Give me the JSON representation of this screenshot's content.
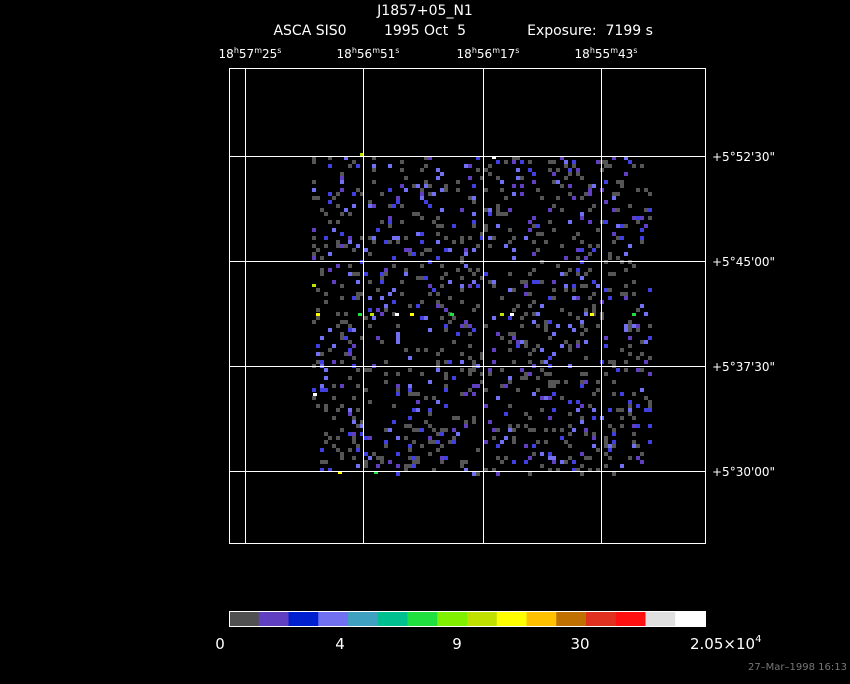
{
  "header": {
    "title": "J1857+05_N1",
    "subtitle": [
      "ASCA SIS0",
      "1995 Oct  5",
      "Exposure:  7199 s"
    ]
  },
  "ra_labels": [
    [
      "18",
      "h",
      "57",
      "m",
      "25",
      "s"
    ],
    [
      "18",
      "h",
      "56",
      "m",
      "51",
      "s"
    ],
    [
      "18",
      "h",
      "56",
      "m",
      "17",
      "s"
    ],
    [
      "18",
      "h",
      "55",
      "m",
      "43",
      "s"
    ]
  ],
  "dec_labels": [
    "+5°52'30\"",
    "+5°45'00\"",
    "+5°37'30\"",
    "+5°30'00\""
  ],
  "colorbar": {
    "labels": [
      "0",
      "4",
      "9",
      "30"
    ],
    "max_label": {
      "base": "2.05×10",
      "exponent": "4"
    }
  },
  "timestamp": "27–Mar–1998 16:13"
}
